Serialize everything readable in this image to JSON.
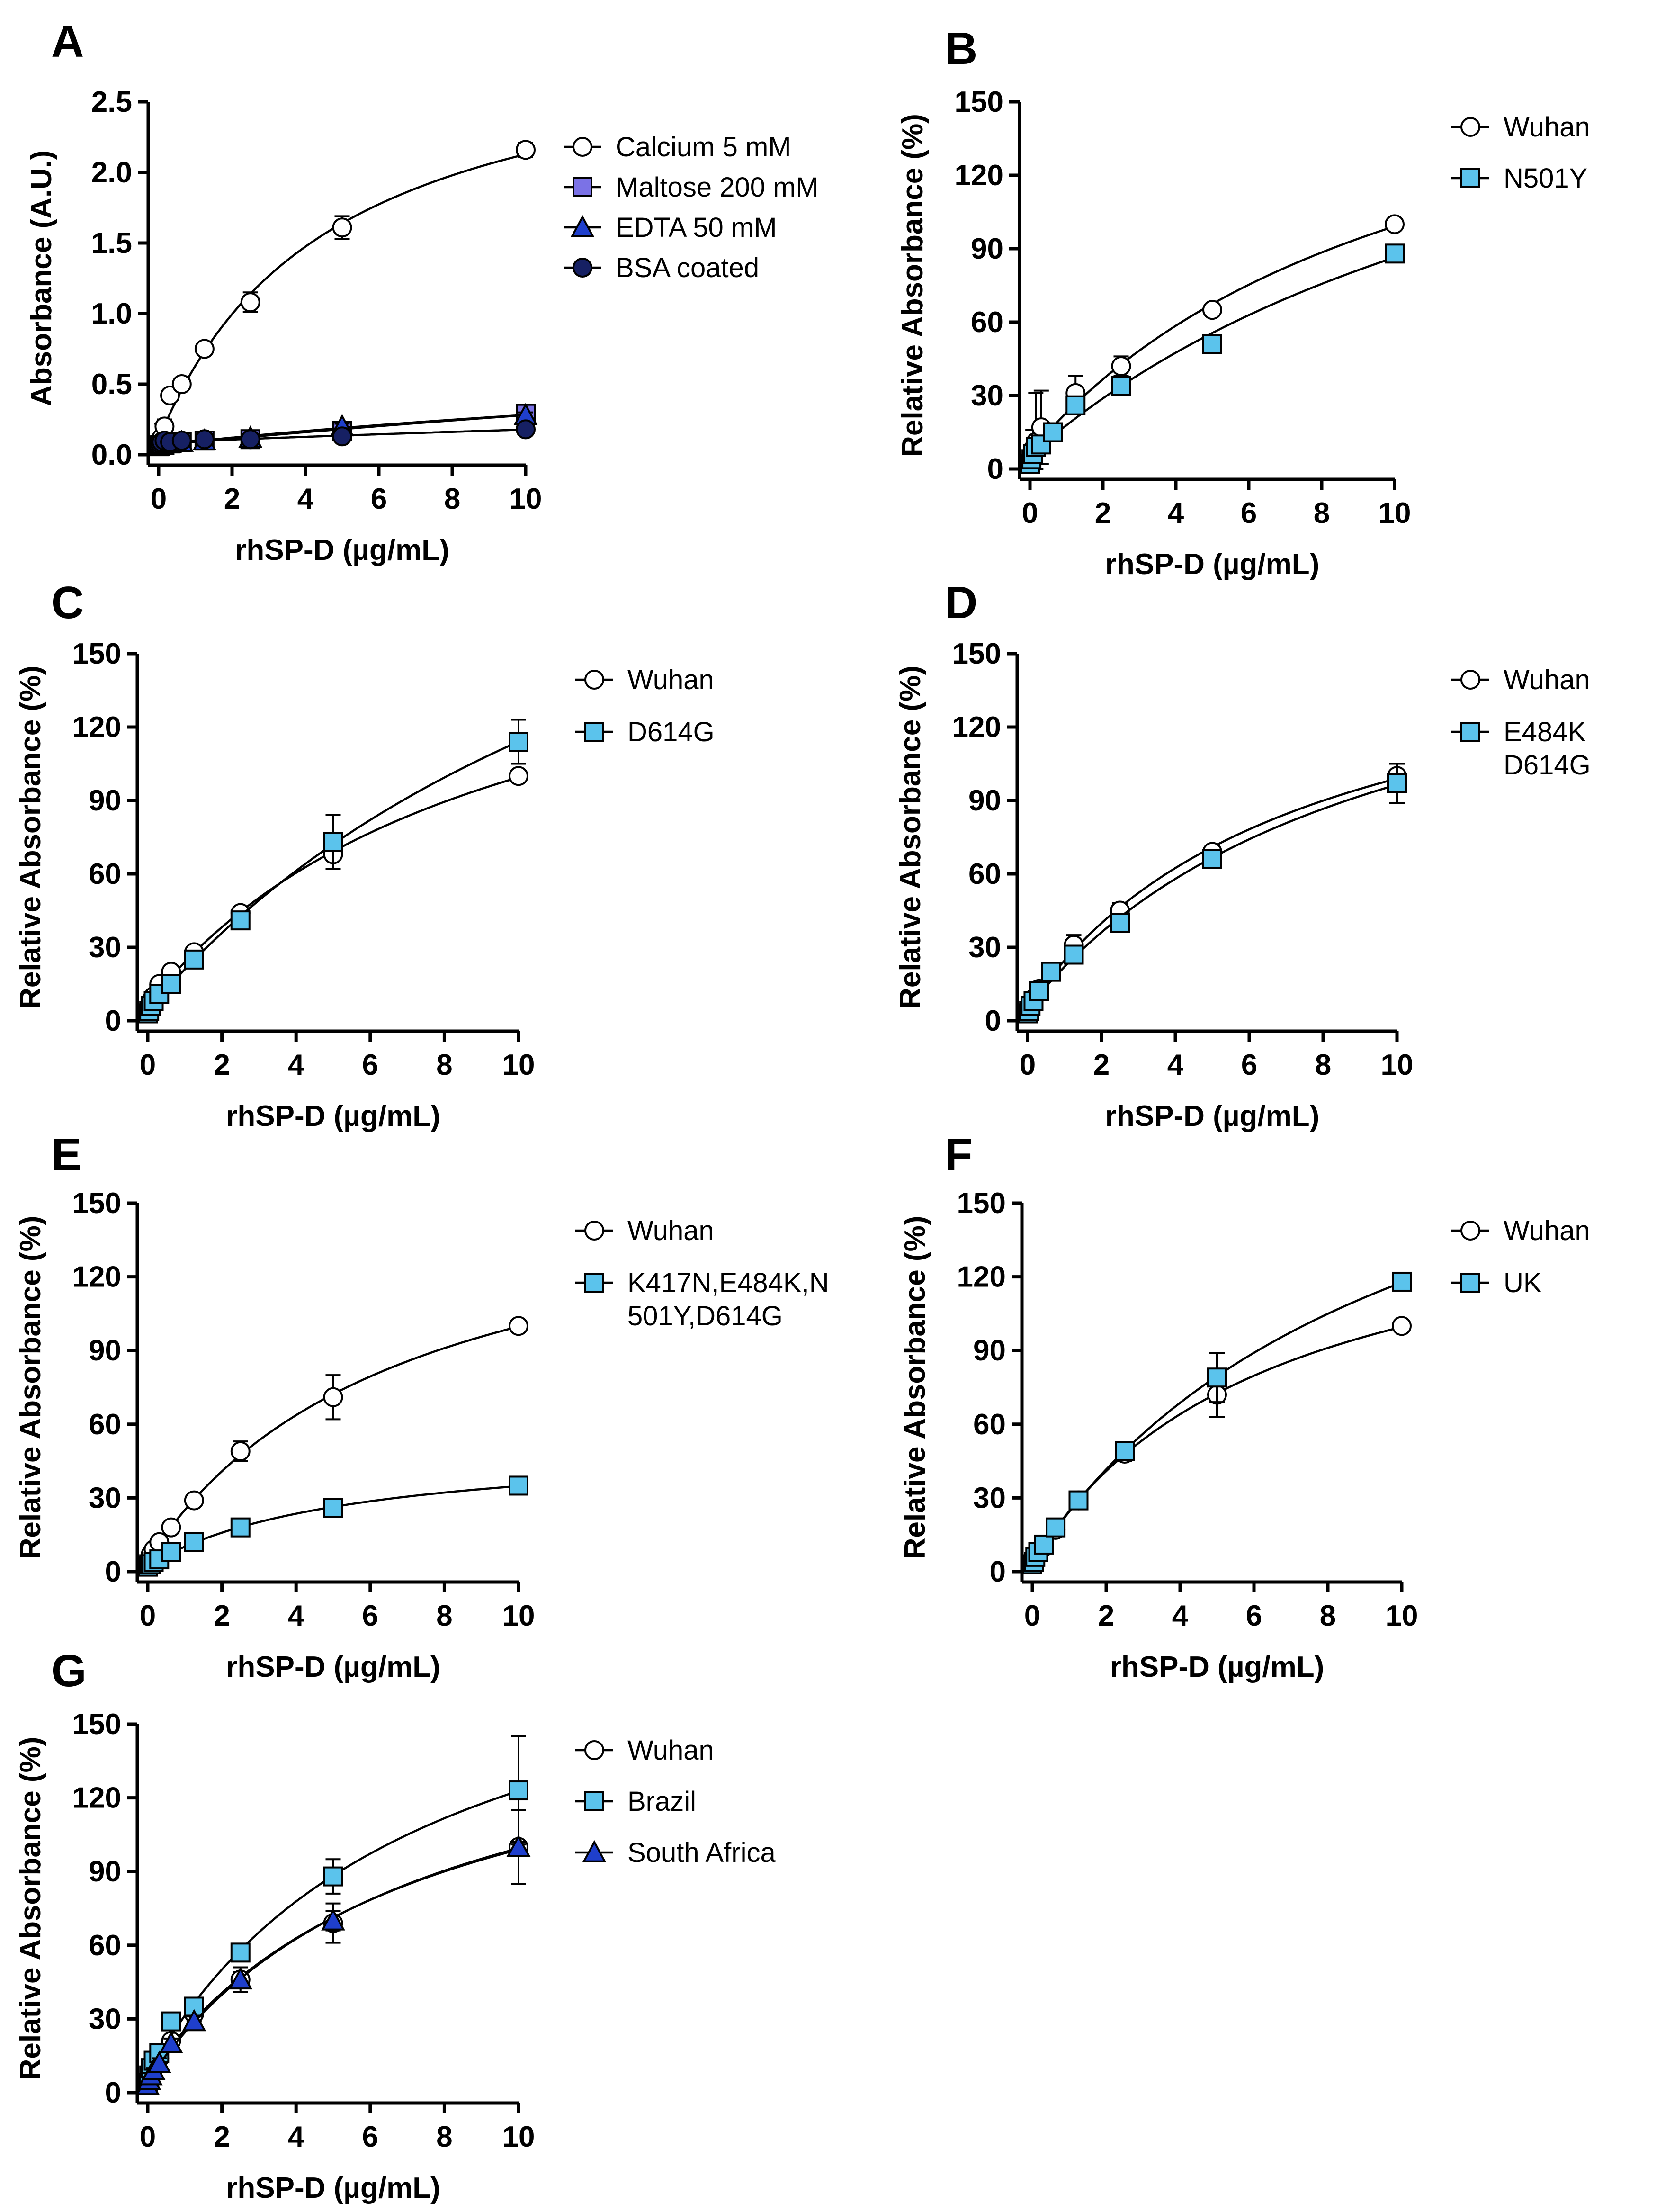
{
  "colors": {
    "circle_fill": "#ffffff",
    "lightblue": "#5bc3ec",
    "purple": "#7b72e6",
    "blue": "#1f3fcc",
    "navy": "#162063",
    "stroke": "#000000"
  },
  "chart_data": [
    {
      "panel": "A",
      "type": "scatter",
      "xlabel": "rhSP-D (µg/mL)",
      "ylabel": "Absorbance (A.U.)",
      "xlim": [
        0,
        10
      ],
      "ylim": [
        0,
        2.5
      ],
      "xticks": [
        "0",
        "2",
        "4",
        "6",
        "8",
        "10"
      ],
      "yticks": [
        "0.0",
        "0.5",
        "1.0",
        "1.5",
        "2.0",
        "2.5"
      ],
      "ytick_values": [
        0,
        0.5,
        1.0,
        1.5,
        2.0,
        2.5
      ],
      "xtick_values": [
        0,
        2,
        4,
        6,
        8,
        10
      ],
      "x": [
        0,
        0.04,
        0.08,
        0.16,
        0.31,
        0.63,
        1.25,
        2.5,
        5,
        10
      ],
      "series": [
        {
          "name": "Calcium 5 mM",
          "marker": "circle",
          "color": "circle_fill",
          "values": [
            0.07,
            0.09,
            0.12,
            0.2,
            0.42,
            0.5,
            0.75,
            1.08,
            1.61,
            2.16
          ],
          "errors": [
            0.03,
            0.03,
            0.1,
            0.05,
            0.04,
            0.04,
            0.04,
            0.07,
            0.08,
            0.05
          ]
        },
        {
          "name": "Maltose 200 mM",
          "marker": "square",
          "color": "purple",
          "values": [
            0.06,
            0.07,
            0.07,
            0.07,
            0.08,
            0.09,
            0.1,
            0.11,
            0.17,
            0.29
          ],
          "errors": [
            0.01,
            0.01,
            0.01,
            0.01,
            0.01,
            0.01,
            0.01,
            0.01,
            0.02,
            0.02
          ]
        },
        {
          "name": "EDTA 50 mM",
          "marker": "triangle",
          "color": "blue",
          "values": [
            0.06,
            0.07,
            0.07,
            0.08,
            0.08,
            0.09,
            0.1,
            0.12,
            0.2,
            0.28
          ],
          "errors": [
            0.01,
            0.01,
            0.01,
            0.01,
            0.01,
            0.01,
            0.01,
            0.01,
            0.02,
            0.02
          ]
        },
        {
          "name": "BSA coated",
          "marker": "circle",
          "color": "navy",
          "values": [
            0.07,
            0.08,
            0.09,
            0.1,
            0.09,
            0.1,
            0.11,
            0.11,
            0.13,
            0.18
          ],
          "errors": [
            0.01,
            0.01,
            0.01,
            0.01,
            0.01,
            0.01,
            0.01,
            0.01,
            0.01,
            0.01
          ]
        }
      ]
    },
    {
      "panel": "B",
      "type": "scatter",
      "xlabel": "rhSP-D (µg/mL)",
      "ylabel": "Relative Absorbance (%)",
      "xlim": [
        0,
        10
      ],
      "ylim": [
        0,
        150
      ],
      "xticks": [
        "0",
        "2",
        "4",
        "6",
        "8",
        "10"
      ],
      "yticks": [
        "0",
        "30",
        "60",
        "90",
        "120",
        "150"
      ],
      "ytick_values": [
        0,
        30,
        60,
        90,
        120,
        150
      ],
      "xtick_values": [
        0,
        2,
        4,
        6,
        8,
        10
      ],
      "x": [
        0,
        0.04,
        0.08,
        0.16,
        0.31,
        0.63,
        1.25,
        2.5,
        5,
        10
      ],
      "series": [
        {
          "name": "Wuhan",
          "marker": "circle",
          "color": "circle_fill",
          "values": [
            3,
            5,
            8,
            11,
            17,
            15,
            31,
            42,
            65,
            100
          ],
          "errors": [
            1,
            2,
            8,
            20,
            15,
            3,
            7,
            4,
            2,
            0
          ]
        },
        {
          "name": "N501Y",
          "marker": "square",
          "color": "lightblue",
          "values": [
            2,
            4,
            6,
            9,
            10,
            15,
            26,
            34,
            51,
            88
          ],
          "errors": [
            1,
            1,
            2,
            3,
            3,
            2,
            3,
            3,
            2,
            3
          ]
        }
      ]
    },
    {
      "panel": "C",
      "type": "scatter",
      "xlabel": "rhSP-D (µg/mL)",
      "ylabel": "Relative Absorbance (%)",
      "xlim": [
        0,
        10
      ],
      "ylim": [
        0,
        150
      ],
      "xticks": [
        "0",
        "2",
        "4",
        "6",
        "8",
        "10"
      ],
      "yticks": [
        "0",
        "30",
        "60",
        "90",
        "120",
        "150"
      ],
      "ytick_values": [
        0,
        30,
        60,
        90,
        120,
        150
      ],
      "xtick_values": [
        0,
        2,
        4,
        6,
        8,
        10
      ],
      "x": [
        0,
        0.04,
        0.08,
        0.16,
        0.31,
        0.63,
        1.25,
        2.5,
        5,
        10
      ],
      "series": [
        {
          "name": "Wuhan",
          "marker": "circle",
          "color": "circle_fill",
          "values": [
            4,
            6,
            8,
            10,
            15,
            20,
            28,
            44,
            68,
            100
          ],
          "errors": [
            1,
            1,
            1,
            2,
            2,
            2,
            2,
            2,
            6,
            0
          ]
        },
        {
          "name": "D614G",
          "marker": "square",
          "color": "lightblue",
          "values": [
            3,
            4,
            6,
            8,
            11,
            15,
            25,
            41,
            73,
            114
          ],
          "errors": [
            1,
            1,
            1,
            1,
            2,
            2,
            2,
            2,
            11,
            9
          ]
        }
      ]
    },
    {
      "panel": "D",
      "type": "scatter",
      "xlabel": "rhSP-D (µg/mL)",
      "ylabel": "Relative Absorbance (%)",
      "xlim": [
        0,
        10
      ],
      "ylim": [
        0,
        150
      ],
      "xticks": [
        "0",
        "2",
        "4",
        "6",
        "8",
        "10"
      ],
      "yticks": [
        "0",
        "30",
        "60",
        "90",
        "120",
        "150"
      ],
      "ytick_values": [
        0,
        30,
        60,
        90,
        120,
        150
      ],
      "xtick_values": [
        0,
        2,
        4,
        6,
        8,
        10
      ],
      "x": [
        0,
        0.04,
        0.08,
        0.16,
        0.31,
        0.63,
        1.25,
        2.5,
        5,
        10
      ],
      "series": [
        {
          "name": "Wuhan",
          "marker": "circle",
          "color": "circle_fill",
          "values": [
            3,
            5,
            7,
            9,
            13,
            20,
            31,
            45,
            69,
            100
          ],
          "errors": [
            1,
            1,
            2,
            2,
            2,
            3,
            4,
            3,
            2,
            5
          ]
        },
        {
          "name": "E484K D614G",
          "marker": "square",
          "color": "lightblue",
          "values": [
            3,
            4,
            6,
            8,
            12,
            20,
            27,
            40,
            66,
            97
          ],
          "errors": [
            1,
            1,
            1,
            1,
            2,
            2,
            3,
            3,
            2,
            8
          ]
        }
      ]
    },
    {
      "panel": "E",
      "type": "scatter",
      "xlabel": "rhSP-D (µg/mL)",
      "ylabel": "Relative Absorbance (%)",
      "xlim": [
        0,
        10
      ],
      "ylim": [
        0,
        150
      ],
      "xticks": [
        "0",
        "2",
        "4",
        "6",
        "8",
        "10"
      ],
      "yticks": [
        "0",
        "30",
        "60",
        "90",
        "120",
        "150"
      ],
      "ytick_values": [
        0,
        30,
        60,
        90,
        120,
        150
      ],
      "xtick_values": [
        0,
        2,
        4,
        6,
        8,
        10
      ],
      "x": [
        0,
        0.04,
        0.08,
        0.16,
        0.31,
        0.63,
        1.25,
        2.5,
        5,
        10
      ],
      "series": [
        {
          "name": "Wuhan",
          "marker": "circle",
          "color": "circle_fill",
          "values": [
            4,
            5,
            7,
            9,
            12,
            18,
            29,
            49,
            71,
            100
          ],
          "errors": [
            1,
            1,
            1,
            2,
            2,
            2,
            2,
            4,
            9,
            0
          ]
        },
        {
          "name": "K417N,E484K,N 501Y,D614G",
          "marker": "square",
          "color": "lightblue",
          "values": [
            2,
            3,
            3,
            4,
            5,
            8,
            12,
            18,
            26,
            35
          ],
          "errors": [
            1,
            1,
            1,
            1,
            1,
            1,
            1,
            1,
            1,
            1
          ]
        }
      ]
    },
    {
      "panel": "F",
      "type": "scatter",
      "xlabel": "rhSP-D (µg/mL)",
      "ylabel": "Relative Absorbance (%)",
      "xlim": [
        0,
        10
      ],
      "ylim": [
        0,
        150
      ],
      "xticks": [
        "0",
        "2",
        "4",
        "6",
        "8",
        "10"
      ],
      "yticks": [
        "0",
        "30",
        "60",
        "90",
        "120",
        "150"
      ],
      "ytick_values": [
        0,
        30,
        60,
        90,
        120,
        150
      ],
      "xtick_values": [
        0,
        2,
        4,
        6,
        8,
        10
      ],
      "x": [
        0,
        0.04,
        0.08,
        0.16,
        0.31,
        0.63,
        1.25,
        2.5,
        5,
        10
      ],
      "series": [
        {
          "name": "Wuhan",
          "marker": "circle",
          "color": "circle_fill",
          "values": [
            3,
            4,
            6,
            8,
            10,
            17,
            29,
            48,
            72,
            100
          ],
          "errors": [
            1,
            1,
            1,
            1,
            2,
            2,
            2,
            3,
            9,
            0
          ]
        },
        {
          "name": "UK",
          "marker": "square",
          "color": "lightblue",
          "values": [
            3,
            4,
            6,
            8,
            11,
            18,
            29,
            49,
            79,
            118
          ],
          "errors": [
            1,
            1,
            1,
            1,
            2,
            2,
            2,
            3,
            10,
            2
          ]
        }
      ]
    },
    {
      "panel": "G",
      "type": "scatter",
      "xlabel": "rhSP-D (µg/mL)",
      "ylabel": "Relative Absorbance (%)",
      "xlim": [
        0,
        10
      ],
      "ylim": [
        0,
        150
      ],
      "xticks": [
        "0",
        "2",
        "4",
        "6",
        "8",
        "10"
      ],
      "yticks": [
        "0",
        "30",
        "60",
        "90",
        "120",
        "150"
      ],
      "ytick_values": [
        0,
        30,
        60,
        90,
        120,
        150
      ],
      "xtick_values": [
        0,
        2,
        4,
        6,
        8,
        10
      ],
      "x": [
        0,
        0.04,
        0.08,
        0.16,
        0.31,
        0.63,
        1.25,
        2.5,
        5,
        10
      ],
      "series": [
        {
          "name": "Wuhan",
          "marker": "circle",
          "color": "circle_fill",
          "values": [
            4,
            6,
            8,
            10,
            14,
            21,
            32,
            46,
            69,
            100
          ],
          "errors": [
            1,
            1,
            1,
            2,
            2,
            2,
            3,
            3,
            8,
            15
          ]
        },
        {
          "name": "Brazil",
          "marker": "square",
          "color": "lightblue",
          "values": [
            4,
            7,
            10,
            13,
            16,
            29,
            35,
            57,
            88,
            123
          ],
          "errors": [
            1,
            1,
            1,
            2,
            2,
            2,
            3,
            3,
            7,
            22
          ]
        },
        {
          "name": "South Africa",
          "marker": "triangle",
          "color": "blue",
          "values": [
            3,
            5,
            7,
            9,
            12,
            20,
            29,
            46,
            70,
            100
          ],
          "errors": [
            1,
            1,
            1,
            1,
            2,
            2,
            2,
            5,
            4,
            2
          ]
        }
      ]
    }
  ]
}
